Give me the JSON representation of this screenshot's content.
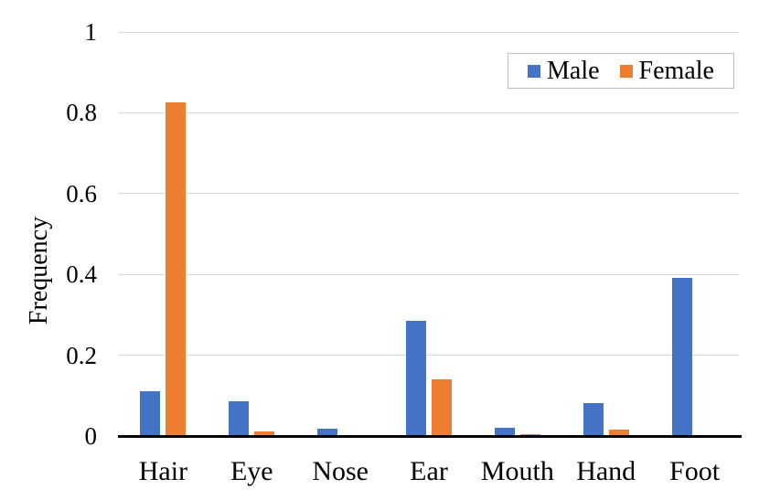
{
  "chart_data": {
    "type": "bar",
    "ylabel": "Frequency",
    "ylim": [
      0,
      1
    ],
    "ytick_values": [
      0,
      0.2,
      0.4,
      0.6,
      0.8,
      1
    ],
    "ytick_labels": [
      "0",
      "0.2",
      "0.4",
      "0.6",
      "0.8",
      "1"
    ],
    "categories": [
      "Hair",
      "Eye",
      "Nose",
      "Ear",
      "Mouth",
      "Hand",
      "Foot"
    ],
    "series": [
      {
        "name": "Male",
        "color": "#4472C4",
        "values": [
          0.11,
          0.085,
          0.017,
          0.285,
          0.02,
          0.082,
          0.392
        ]
      },
      {
        "name": "Female",
        "color": "#ED7D31",
        "values": [
          0.825,
          0.012,
          0,
          0.14,
          0.005,
          0.015,
          0
        ]
      }
    ],
    "grid": true,
    "legend_position": "top-right",
    "colors": {
      "male": "#4472C4",
      "female": "#ED7D31",
      "gridline": "#D9D9D9",
      "axis": "#000000",
      "legend_border": "#BFBFBF",
      "text": "#000000"
    }
  }
}
